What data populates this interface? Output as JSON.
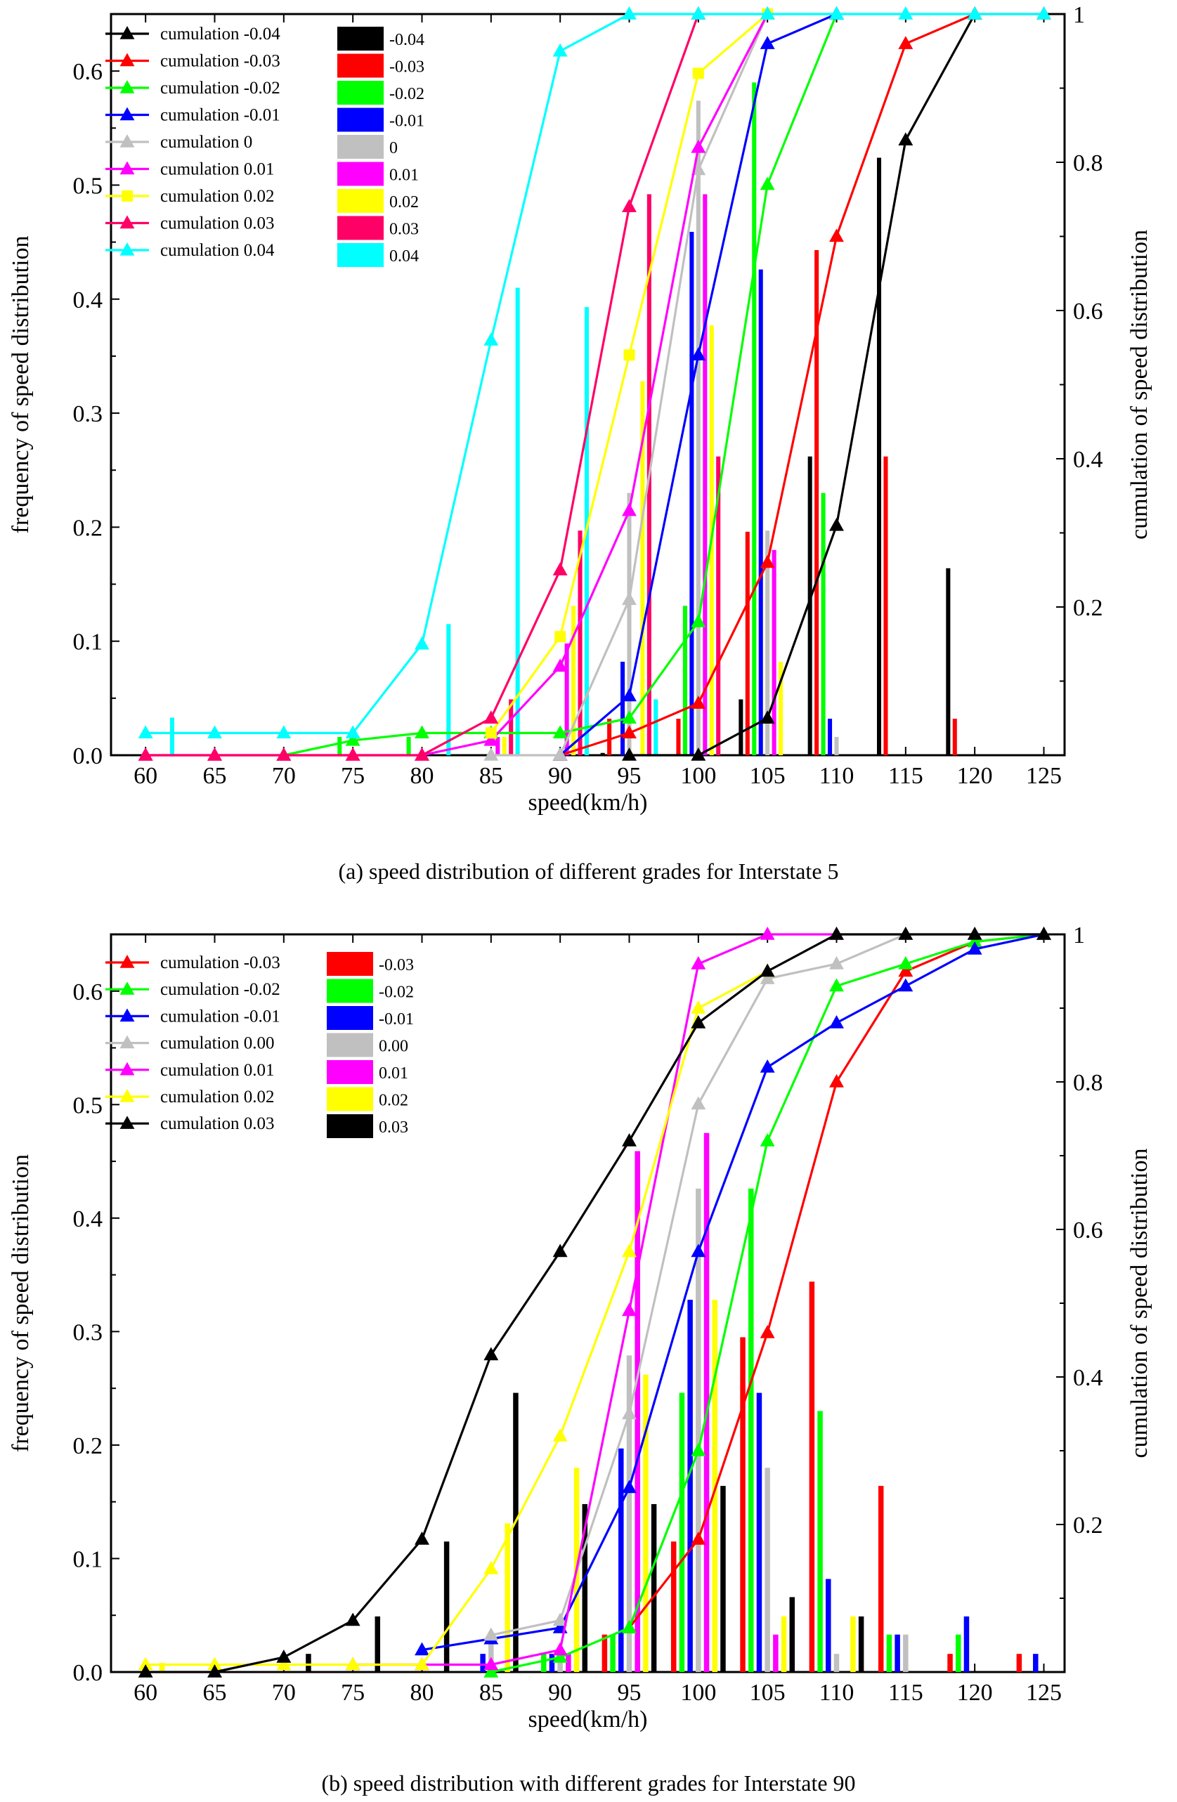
{
  "chart_data": [
    {
      "type": "bar",
      "panel": "a",
      "caption": "(a) speed distribution of different grades for Interstate 5",
      "xlabel": "speed(km/h)",
      "ylabel": "frequency of speed distribution",
      "y2label": "cumulation of speed distribution",
      "xlim": [
        57.5,
        126.5
      ],
      "ylim": [
        0,
        0.65
      ],
      "y2lim": [
        0,
        1.0
      ],
      "xticks": [
        "60",
        "65",
        "70",
        "75",
        "80",
        "85",
        "90",
        "95",
        "100",
        "105",
        "110",
        "115",
        "120",
        "125"
      ],
      "yticks": [
        "0.0",
        "0.1",
        "0.2",
        "0.3",
        "0.4",
        "0.5",
        "0.6"
      ],
      "y2ticks": [
        "0.2",
        "0.4",
        "0.6",
        "0.8",
        "1"
      ],
      "bar_x": [
        60,
        65,
        70,
        75,
        80,
        85,
        90,
        95,
        100,
        105,
        110,
        115,
        120,
        125
      ],
      "bar_series": [
        {
          "name": "-0.04",
          "color": "#000000",
          "values": [
            0,
            0,
            0,
            0,
            0,
            0,
            0,
            0.002,
            0,
            0.049,
            0.262,
            0.524,
            0.164,
            0
          ]
        },
        {
          "name": "-0.03",
          "color": "#ff0000",
          "values": [
            0,
            0,
            0,
            0,
            0,
            0,
            0,
            0.032,
            0.032,
            0.196,
            0.443,
            0.262,
            0.032,
            0
          ]
        },
        {
          "name": "-0.02",
          "color": "#00ff00",
          "values": [
            0,
            0,
            0,
            0.016,
            0.016,
            0,
            0,
            0,
            0.131,
            0.59,
            0.23,
            0,
            0,
            0
          ]
        },
        {
          "name": "-0.01",
          "color": "#0000ff",
          "values": [
            0,
            0,
            0,
            0,
            0,
            0,
            0,
            0.082,
            0.459,
            0.426,
            0.032,
            0,
            0,
            0
          ]
        },
        {
          "name": "0",
          "color": "#c0c0c0",
          "values": [
            0,
            0,
            0,
            0,
            0,
            0.002,
            0,
            0.23,
            0.574,
            0.197,
            0.016,
            0,
            0,
            0
          ]
        },
        {
          "name": "0.01",
          "color": "#ff00ff",
          "values": [
            0,
            0,
            0,
            0,
            0,
            0.016,
            0.098,
            0,
            0.492,
            0.18,
            0,
            0,
            0,
            0
          ]
        },
        {
          "name": "0.02",
          "color": "#ffff00",
          "values": [
            0,
            0,
            0,
            0,
            0,
            0.016,
            0.131,
            0.328,
            0.377,
            0.082,
            0,
            0,
            0,
            0
          ]
        },
        {
          "name": "0.03",
          "color": "#ff0066",
          "values": [
            0,
            0,
            0,
            0,
            0,
            0.049,
            0.197,
            0.492,
            0.262,
            0,
            0,
            0,
            0,
            0
          ]
        },
        {
          "name": "0.04",
          "color": "#00ffff",
          "values": [
            0.033,
            0,
            0,
            0,
            0.115,
            0.41,
            0.393,
            0.049,
            0,
            0,
            0,
            0,
            0,
            0
          ]
        }
      ],
      "line_series": [
        {
          "name": "cumulation -0.04",
          "color": "#000000",
          "x": [
            95,
            100,
            105,
            110,
            115,
            120
          ],
          "y": [
            0.0,
            0.0,
            0.05,
            0.31,
            0.83,
            1.0
          ]
        },
        {
          "name": "cumulation -0.03",
          "color": "#ff0000",
          "x": [
            90,
            95,
            100,
            105,
            110,
            115,
            120,
            125
          ],
          "y": [
            0.0,
            0.03,
            0.07,
            0.26,
            0.7,
            0.96,
            1.0,
            1.0
          ]
        },
        {
          "name": "cumulation -0.02",
          "color": "#00ff00",
          "x": [
            70,
            75,
            80,
            85,
            90,
            95,
            100,
            105,
            110
          ],
          "y": [
            0.0,
            0.02,
            0.03,
            0.03,
            0.03,
            0.05,
            0.18,
            0.77,
            1.0
          ]
        },
        {
          "name": "cumulation -0.01",
          "color": "#0000ff",
          "x": [
            90,
            95,
            100,
            105,
            110
          ],
          "y": [
            0.0,
            0.08,
            0.54,
            0.96,
            1.0
          ]
        },
        {
          "name": "cumulation 0",
          "color": "#c0c0c0",
          "x": [
            85,
            90,
            95,
            100,
            105
          ],
          "y": [
            0.0,
            0.0,
            0.21,
            0.79,
            1.0
          ]
        },
        {
          "name": "cumulation 0.01",
          "color": "#ff00ff",
          "x": [
            60,
            65,
            70,
            75,
            80,
            85,
            90,
            95,
            100,
            105
          ],
          "y": [
            0.0,
            0.0,
            0.0,
            0.0,
            0.0,
            0.02,
            0.12,
            0.33,
            0.82,
            1.0
          ]
        },
        {
          "name": "cumulation 0.02",
          "color": "#ffff00",
          "x": [
            85,
            90,
            95,
            100,
            105
          ],
          "y": [
            0.03,
            0.16,
            0.54,
            0.92,
            1.0
          ]
        },
        {
          "name": "cumulation 0.03",
          "color": "#ff0066",
          "x": [
            60,
            65,
            70,
            75,
            80,
            85,
            90,
            95,
            100
          ],
          "y": [
            0.0,
            0.0,
            0.0,
            0.0,
            0.0,
            0.05,
            0.25,
            0.74,
            1.0
          ]
        },
        {
          "name": "cumulation 0.04",
          "color": "#00ffff",
          "x": [
            60,
            65,
            70,
            75,
            80,
            85,
            90,
            95,
            100,
            105,
            110,
            115,
            120,
            125
          ],
          "y": [
            0.03,
            0.03,
            0.03,
            0.03,
            0.15,
            0.56,
            0.95,
            1.0,
            1.0,
            1.0,
            1.0,
            1.0,
            1.0,
            1.0
          ]
        }
      ]
    },
    {
      "type": "bar",
      "panel": "b",
      "caption": "(b) speed distribution with different grades for Interstate 90",
      "xlabel": "speed(km/h)",
      "ylabel": "frequency of speed distribution",
      "y2label": "cumulation of speed distribution",
      "xlim": [
        57.5,
        126.5
      ],
      "ylim": [
        0,
        0.65
      ],
      "y2lim": [
        0,
        1.0
      ],
      "xticks": [
        "60",
        "65",
        "70",
        "75",
        "80",
        "85",
        "90",
        "95",
        "100",
        "105",
        "110",
        "115",
        "120",
        "125"
      ],
      "yticks": [
        "0.0",
        "0.1",
        "0.2",
        "0.3",
        "0.4",
        "0.5",
        "0.6"
      ],
      "y2ticks": [
        "0.2",
        "0.4",
        "0.6",
        "0.8",
        "1"
      ],
      "bar_x": [
        60,
        65,
        70,
        75,
        80,
        85,
        90,
        95,
        100,
        105,
        110,
        115,
        120,
        125
      ],
      "bar_series": [
        {
          "name": "-0.03",
          "color": "#ff0000",
          "values": [
            0,
            0,
            0,
            0,
            0,
            0,
            0,
            0.033,
            0.115,
            0.295,
            0.344,
            0.164,
            0.016,
            0.016
          ]
        },
        {
          "name": "-0.02",
          "color": "#00ff00",
          "values": [
            0,
            0,
            0,
            0,
            0,
            0,
            0.016,
            0.033,
            0.246,
            0.426,
            0.23,
            0.033,
            0.033,
            0
          ]
        },
        {
          "name": "-0.01",
          "color": "#0000ff",
          "values": [
            0,
            0,
            0,
            0,
            0,
            0.016,
            0.016,
            0.197,
            0.328,
            0.246,
            0.082,
            0.033,
            0.049,
            0.016
          ]
        },
        {
          "name": "0.00",
          "color": "#c0c0c0",
          "values": [
            0,
            0,
            0,
            0,
            0,
            0.033,
            0.016,
            0.279,
            0.426,
            0.18,
            0.016,
            0.033,
            0,
            0
          ]
        },
        {
          "name": "0.01",
          "color": "#ff00ff",
          "values": [
            0,
            0,
            0,
            0,
            0,
            0,
            0.016,
            0.459,
            0.475,
            0.033,
            0,
            0,
            0,
            0
          ]
        },
        {
          "name": "0.02",
          "color": "#ffff00",
          "values": [
            0.008,
            0,
            0,
            0,
            0,
            0.131,
            0.18,
            0.262,
            0.328,
            0.049,
            0.049,
            0,
            0,
            0
          ]
        },
        {
          "name": "0.03",
          "color": "#000000",
          "values": [
            0,
            0,
            0.016,
            0.049,
            0.115,
            0.246,
            0.148,
            0.148,
            0.164,
            0.066,
            0.049,
            0,
            0,
            0
          ]
        }
      ],
      "line_series": [
        {
          "name": "cumulation -0.03",
          "color": "#ff0000",
          "x": [
            95,
            100,
            105,
            110,
            115,
            120,
            125
          ],
          "y": [
            0.06,
            0.18,
            0.46,
            0.8,
            0.95,
            0.99,
            1.0
          ]
        },
        {
          "name": "cumulation -0.02",
          "color": "#00ff00",
          "x": [
            85,
            90,
            95,
            100,
            105,
            110,
            115,
            120,
            125
          ],
          "y": [
            0.0,
            0.02,
            0.06,
            0.3,
            0.72,
            0.93,
            0.96,
            0.99,
            1.0
          ]
        },
        {
          "name": "cumulation -0.01",
          "color": "#0000ff",
          "x": [
            80,
            85,
            90,
            95,
            100,
            105,
            110,
            115,
            120,
            125
          ],
          "y": [
            0.03,
            0.045,
            0.06,
            0.25,
            0.57,
            0.82,
            0.88,
            0.93,
            0.98,
            1.0
          ]
        },
        {
          "name": "cumulation  0.00",
          "color": "#c0c0c0",
          "x": [
            85,
            90,
            95,
            100,
            105,
            110,
            115,
            125
          ],
          "y": [
            0.05,
            0.07,
            0.35,
            0.77,
            0.94,
            0.96,
            1.0,
            1.0
          ]
        },
        {
          "name": "cumulation  0.01",
          "color": "#ff00ff",
          "x": [
            75,
            80,
            85,
            90,
            95,
            100,
            105,
            110
          ],
          "y": [
            0.01,
            0.01,
            0.01,
            0.03,
            0.49,
            0.96,
            1.0,
            1.0
          ]
        },
        {
          "name": "cumulation  0.02",
          "color": "#ffff00",
          "x": [
            60,
            65,
            70,
            75,
            80,
            85,
            90,
            95,
            100,
            105
          ],
          "y": [
            0.01,
            0.01,
            0.01,
            0.01,
            0.01,
            0.14,
            0.32,
            0.57,
            0.9,
            0.95
          ]
        },
        {
          "name": "cumulation  0.03",
          "color": "#000000",
          "x": [
            60,
            65,
            70,
            75,
            80,
            85,
            90,
            95,
            100,
            105,
            110,
            115,
            120,
            125
          ],
          "y": [
            0.0,
            0.0,
            0.02,
            0.07,
            0.18,
            0.43,
            0.57,
            0.72,
            0.88,
            0.95,
            1.0,
            1.0,
            1.0,
            1.0
          ]
        }
      ]
    }
  ]
}
